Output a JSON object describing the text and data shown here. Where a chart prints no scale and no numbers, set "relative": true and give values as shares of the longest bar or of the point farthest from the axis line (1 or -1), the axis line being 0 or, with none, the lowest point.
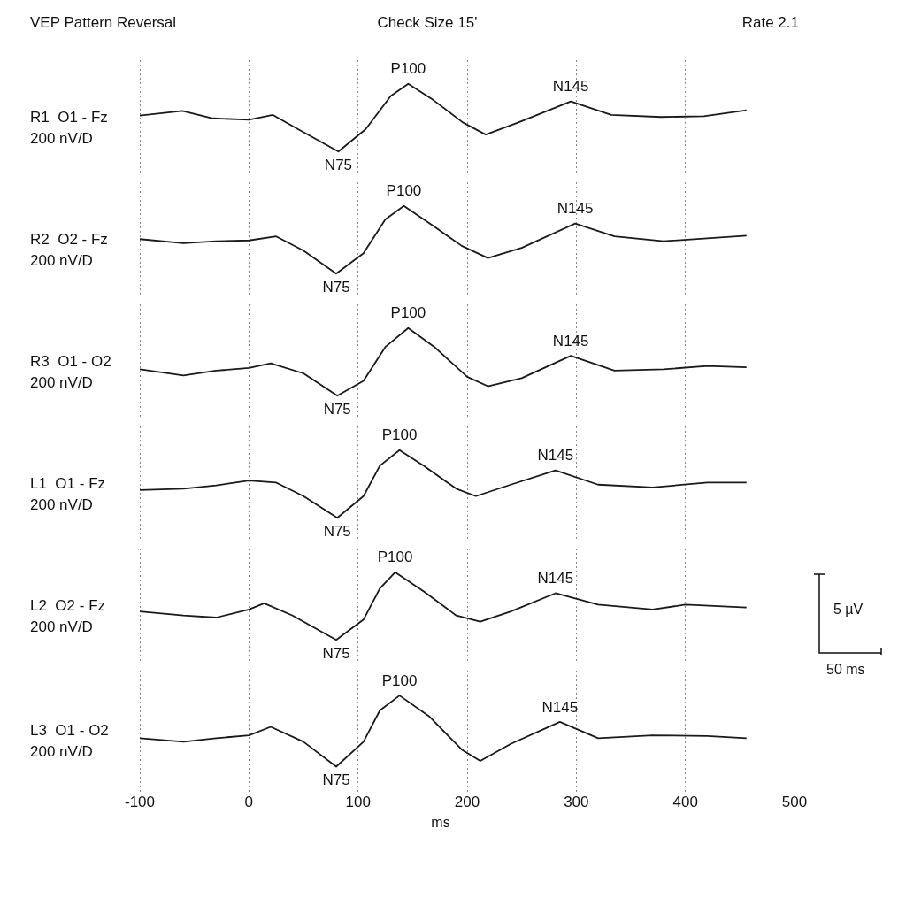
{
  "chart_data": [
    {
      "type": "line",
      "title": "VEP Pattern Reversal",
      "subtitle": "Check Size 15'",
      "ylabel": "R1  O1 - Fz",
      "relative": true,
      "grid": "x",
      "tick_labels": false,
      "marker": "none",
      "line_style": "solid",
      "xlim": [
        -100,
        500
      ],
      "xticks": [
        -100,
        0,
        100,
        200,
        300,
        400,
        500
      ],
      "series": [
        {
          "color": "#1a1a1a",
          "x": [
            -100,
            -61,
            -33,
            0,
            22,
            45,
            82,
            107,
            130,
            146,
            169,
            196,
            217,
            247,
            295,
            332,
            378,
            417,
            456
          ],
          "values": [
            0.53,
            0.6,
            0.49,
            0.47,
            0.54,
            0.33,
            0,
            0.33,
            0.82,
            1,
            0.76,
            0.43,
            0.25,
            0.43,
            0.74,
            0.54,
            0.51,
            0.52,
            0.61
          ]
        }
      ],
      "annotations": [
        "200 nV/D",
        "Rate 2.1",
        {
          "text": "P100",
          "x": 146,
          "y": 1
        },
        {
          "text": "N75",
          "x": 82,
          "y": 0
        },
        {
          "text": "N145",
          "x": 295,
          "y": 0.74
        }
      ]
    },
    {
      "type": "line",
      "ylabel": "R2  O2 - Fz",
      "relative": true,
      "grid": "x",
      "tick_labels": false,
      "marker": "none",
      "line_style": "solid",
      "xlim": [
        -100,
        500
      ],
      "xticks": [
        -100,
        0,
        100,
        200,
        300,
        400,
        500
      ],
      "series": [
        {
          "color": "#1a1a1a",
          "x": [
            -100,
            -60,
            -30,
            0,
            25,
            50,
            80,
            105,
            125,
            142,
            165,
            195,
            219,
            250,
            299,
            335,
            380,
            420,
            456
          ],
          "values": [
            0.51,
            0.45,
            0.48,
            0.49,
            0.55,
            0.34,
            0,
            0.3,
            0.8,
            1,
            0.75,
            0.41,
            0.23,
            0.38,
            0.74,
            0.55,
            0.48,
            0.52,
            0.56
          ]
        }
      ],
      "annotations": [
        "200 nV/D",
        {
          "text": "P100",
          "x": 142,
          "y": 1
        },
        {
          "text": "N75",
          "x": 80,
          "y": 0
        },
        {
          "text": "N145",
          "x": 299,
          "y": 0.74
        }
      ]
    },
    {
      "type": "line",
      "ylabel": "R3  O1 - O2",
      "relative": true,
      "grid": "x",
      "tick_labels": false,
      "marker": "none",
      "line_style": "solid",
      "xlim": [
        -100,
        500
      ],
      "xticks": [
        -100,
        0,
        100,
        200,
        300,
        400,
        500
      ],
      "series": [
        {
          "color": "#1a1a1a",
          "x": [
            -100,
            -60,
            -30,
            0,
            20,
            50,
            81,
            105,
            125,
            146,
            170,
            200,
            219,
            250,
            295,
            335,
            380,
            420,
            456
          ],
          "values": [
            0.39,
            0.3,
            0.37,
            0.41,
            0.48,
            0.33,
            0,
            0.22,
            0.72,
            1,
            0.72,
            0.28,
            0.14,
            0.26,
            0.59,
            0.37,
            0.39,
            0.44,
            0.42
          ]
        }
      ],
      "annotations": [
        "200 nV/D",
        {
          "text": "P100",
          "x": 146,
          "y": 1
        },
        {
          "text": "N75",
          "x": 81,
          "y": 0
        },
        {
          "text": "N145",
          "x": 295,
          "y": 0.59
        }
      ]
    },
    {
      "type": "line",
      "ylabel": "L1  O1 - Fz",
      "relative": true,
      "grid": "x",
      "tick_labels": false,
      "marker": "none",
      "line_style": "solid",
      "xlim": [
        -100,
        500
      ],
      "xticks": [
        -100,
        0,
        100,
        200,
        300,
        400,
        500
      ],
      "series": [
        {
          "color": "#1a1a1a",
          "x": [
            -100,
            -60,
            -30,
            0,
            25,
            50,
            81,
            105,
            120,
            138,
            160,
            190,
            208,
            240,
            281,
            320,
            370,
            420,
            456
          ],
          "values": [
            0.41,
            0.43,
            0.48,
            0.55,
            0.52,
            0.32,
            0,
            0.32,
            0.77,
            1,
            0.77,
            0.43,
            0.32,
            0.49,
            0.7,
            0.49,
            0.45,
            0.52,
            0.52
          ]
        }
      ],
      "annotations": [
        "200 nV/D",
        {
          "text": "P100",
          "x": 138,
          "y": 1
        },
        {
          "text": "N75",
          "x": 81,
          "y": 0
        },
        {
          "text": "N145",
          "x": 281,
          "y": 0.7
        }
      ]
    },
    {
      "type": "line",
      "ylabel": "L2  O2 - Fz",
      "relative": true,
      "grid": "x",
      "tick_labels": false,
      "marker": "none",
      "line_style": "solid",
      "xlim": [
        -100,
        500
      ],
      "xticks": [
        -100,
        0,
        100,
        200,
        300,
        400,
        500
      ],
      "series": [
        {
          "color": "#1a1a1a",
          "x": [
            -100,
            -60,
            -30,
            0,
            14,
            40,
            80,
            105,
            120,
            134,
            160,
            190,
            212,
            240,
            281,
            320,
            370,
            400,
            456
          ],
          "values": [
            0.42,
            0.36,
            0.33,
            0.45,
            0.54,
            0.36,
            0,
            0.3,
            0.76,
            1,
            0.72,
            0.36,
            0.27,
            0.42,
            0.69,
            0.52,
            0.45,
            0.52,
            0.48
          ]
        }
      ],
      "annotations": [
        "200 nV/D",
        {
          "text": "P100",
          "x": 134,
          "y": 1
        },
        {
          "text": "N75",
          "x": 80,
          "y": 0
        },
        {
          "text": "N145",
          "x": 281,
          "y": 0.69
        }
      ]
    },
    {
      "type": "line",
      "ylabel": "L3  O1 - O2",
      "xlabel": "ms",
      "relative": true,
      "grid": "x",
      "tick_labels": "x",
      "marker": "none",
      "line_style": "solid",
      "xlim": [
        -100,
        500
      ],
      "xticks": [
        -100,
        0,
        100,
        200,
        300,
        400,
        500
      ],
      "series": [
        {
          "color": "#1a1a1a",
          "x": [
            -100,
            -60,
            -30,
            0,
            20,
            50,
            80,
            105,
            120,
            138,
            165,
            195,
            212,
            240,
            285,
            320,
            370,
            420,
            456
          ],
          "values": [
            0.4,
            0.35,
            0.4,
            0.44,
            0.56,
            0.35,
            0,
            0.35,
            0.79,
            1,
            0.71,
            0.24,
            0.08,
            0.32,
            0.63,
            0.4,
            0.44,
            0.43,
            0.4
          ]
        }
      ],
      "annotations": [
        "200 nV/D",
        "5 µV",
        "50 ms",
        {
          "text": "P100",
          "x": 138,
          "y": 1
        },
        {
          "text": "N75",
          "x": 80,
          "y": 0
        },
        {
          "text": "N145",
          "x": 285,
          "y": 0.63
        }
      ]
    }
  ]
}
